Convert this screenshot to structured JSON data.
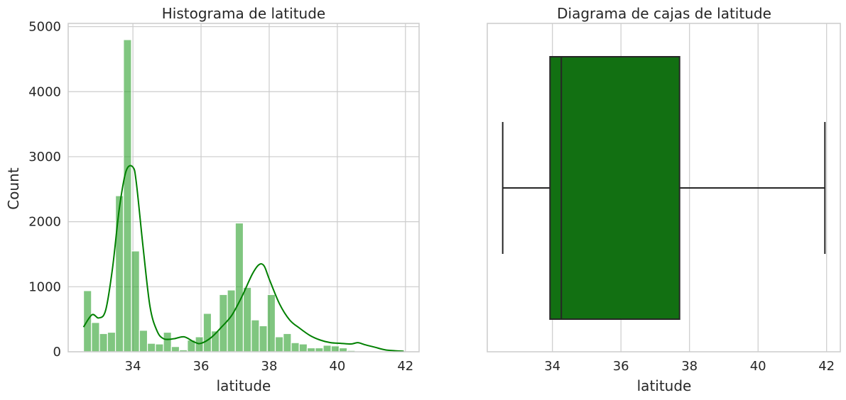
{
  "chart_data": [
    {
      "type": "bar",
      "subtype": "histogram-with-kde",
      "title": "Histograma de latitude",
      "xlabel": "latitude",
      "ylabel": "Count",
      "xlim": [
        32.1,
        42.4
      ],
      "ylim": [
        0,
        5050
      ],
      "xticks": [
        34,
        36,
        38,
        40,
        42
      ],
      "yticks": [
        0,
        1000,
        2000,
        3000,
        4000,
        5000
      ],
      "grid": true,
      "bar_color": "#2ca02c",
      "kde_color": "#008000",
      "bins": {
        "start": 32.55,
        "width": 0.2345,
        "counts": [
          940,
          450,
          280,
          300,
          2400,
          4800,
          1550,
          330,
          130,
          120,
          300,
          80,
          30,
          180,
          230,
          590,
          320,
          880,
          950,
          1980,
          990,
          490,
          400,
          880,
          230,
          280,
          140,
          120,
          60,
          60,
          100,
          90,
          60,
          20,
          5,
          5,
          5,
          5,
          5,
          5
        ]
      },
      "kde": {
        "x": [
          32.55,
          32.8,
          33.0,
          33.2,
          33.4,
          33.6,
          33.8,
          34.0,
          34.1,
          34.3,
          34.5,
          34.7,
          34.9,
          35.2,
          35.5,
          35.8,
          36.0,
          36.3,
          36.6,
          36.9,
          37.2,
          37.5,
          37.7,
          37.85,
          38.0,
          38.3,
          38.6,
          38.9,
          39.2,
          39.5,
          39.8,
          40.1,
          40.4,
          40.6,
          40.8,
          41.1,
          41.4,
          41.7,
          41.95
        ],
        "y": [
          380,
          570,
          520,
          640,
          1280,
          2200,
          2780,
          2840,
          2600,
          1600,
          700,
          330,
          200,
          200,
          230,
          150,
          130,
          220,
          380,
          560,
          850,
          1190,
          1340,
          1320,
          1120,
          740,
          490,
          360,
          250,
          180,
          140,
          130,
          120,
          140,
          110,
          70,
          30,
          15,
          8
        ]
      }
    },
    {
      "type": "box",
      "title": "Diagrama de cajas de latitude",
      "xlabel": "latitude",
      "xlim": [
        32.1,
        42.4
      ],
      "xticks": [
        34,
        36,
        38,
        40,
        42
      ],
      "grid": true,
      "box_color": "#127012",
      "whisker_low": 32.55,
      "q1": 33.93,
      "median": 34.26,
      "q3": 37.71,
      "whisker_high": 41.95
    }
  ]
}
